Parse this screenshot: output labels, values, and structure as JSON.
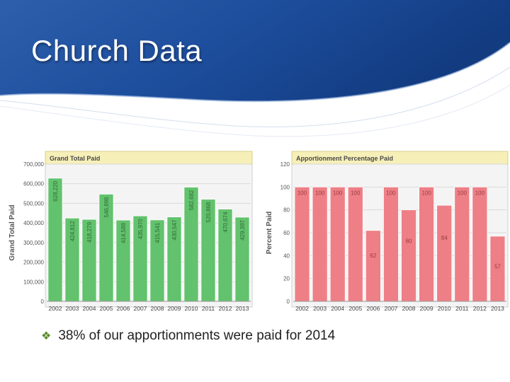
{
  "slide": {
    "title": "Church Data",
    "bullet": {
      "icon": "diamond-bullet-icon",
      "text": "38% of our apportionments were paid for 2014"
    }
  },
  "colors": {
    "header_blue": "#1c4f9e",
    "green_bar": "#63c26d",
    "red_bar": "#ee7f86",
    "panel_title_bg": "#f6efb8"
  },
  "chart_data": [
    {
      "type": "bar",
      "title": "Grand Total Paid",
      "ylabel": "Grand Total Paid",
      "xlabel": "",
      "categories": [
        "2002",
        "2003",
        "2004",
        "2005",
        "2006",
        "2007",
        "2008",
        "2009",
        "2010",
        "2011",
        "2012",
        "2013"
      ],
      "values": [
        628220,
        424812,
        418279,
        546896,
        414588,
        435970,
        415541,
        430547,
        582682,
        520868,
        470674,
        429397
      ],
      "value_labels": [
        "628,220",
        "424,812",
        "418,279",
        "546,896",
        "414,588",
        "435,970",
        "415,541",
        "430,547",
        "582,682",
        "520,868",
        "470,674",
        "429,397"
      ],
      "ylim": [
        0,
        700000
      ],
      "yticks": [
        0,
        100000,
        200000,
        300000,
        400000,
        500000,
        600000,
        700000
      ],
      "ytick_labels": [
        "0",
        "100,000",
        "200,000",
        "300,000",
        "400,000",
        "500,000",
        "600,000",
        "700,000"
      ],
      "grid": true,
      "color": "#63c26d"
    },
    {
      "type": "bar",
      "title": "Apportionment Percentage Paid",
      "ylabel": "Percent Paid",
      "xlabel": "",
      "categories": [
        "2002",
        "2003",
        "2004",
        "2005",
        "2006",
        "2007",
        "2008",
        "2009",
        "2010",
        "2011",
        "2012",
        "2013"
      ],
      "values": [
        100,
        100,
        100,
        100,
        62,
        100,
        80,
        100,
        84,
        100,
        100,
        57
      ],
      "value_labels": [
        "100",
        "100",
        "100",
        "100",
        "62",
        "100",
        "80",
        "100",
        "84",
        "100",
        "100",
        "57"
      ],
      "ylim": [
        0,
        120
      ],
      "yticks": [
        0,
        20,
        40,
        60,
        80,
        100,
        120
      ],
      "ytick_labels": [
        "0",
        "20",
        "40",
        "60",
        "80",
        "100",
        "120"
      ],
      "grid": true,
      "color": "#ee7f86"
    }
  ]
}
